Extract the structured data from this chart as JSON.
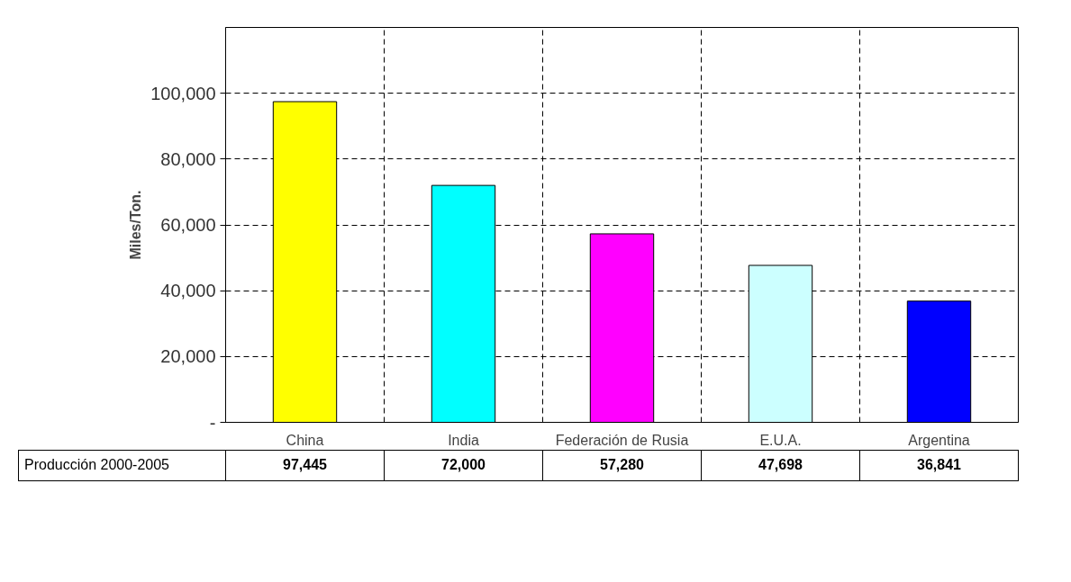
{
  "chart_data": {
    "type": "bar",
    "ylabel": "Miles/Ton.",
    "categories": [
      "China",
      "India",
      "Federación de Rusia",
      "E.U.A.",
      "Argentina"
    ],
    "series": [
      {
        "name": "Producción 2000-2005",
        "values": [
          97445,
          72000,
          57280,
          47698,
          36841
        ],
        "colors": [
          "#ffff00",
          "#00ffff",
          "#ff00ff",
          "#ccffff",
          "#0000ff"
        ],
        "value_labels": [
          "97,445",
          "72,000",
          "57,280",
          "47,698",
          "36,841"
        ]
      }
    ],
    "ylim": [
      0,
      120000
    ],
    "yticks": [
      {
        "value": 0,
        "label": "-"
      },
      {
        "value": 20000,
        "label": "20,000"
      },
      {
        "value": 40000,
        "label": "40,000"
      },
      {
        "value": 60000,
        "label": "60,000"
      },
      {
        "value": 80000,
        "label": "80,000"
      },
      {
        "value": 100000,
        "label": "100,000"
      }
    ],
    "grid": true
  }
}
